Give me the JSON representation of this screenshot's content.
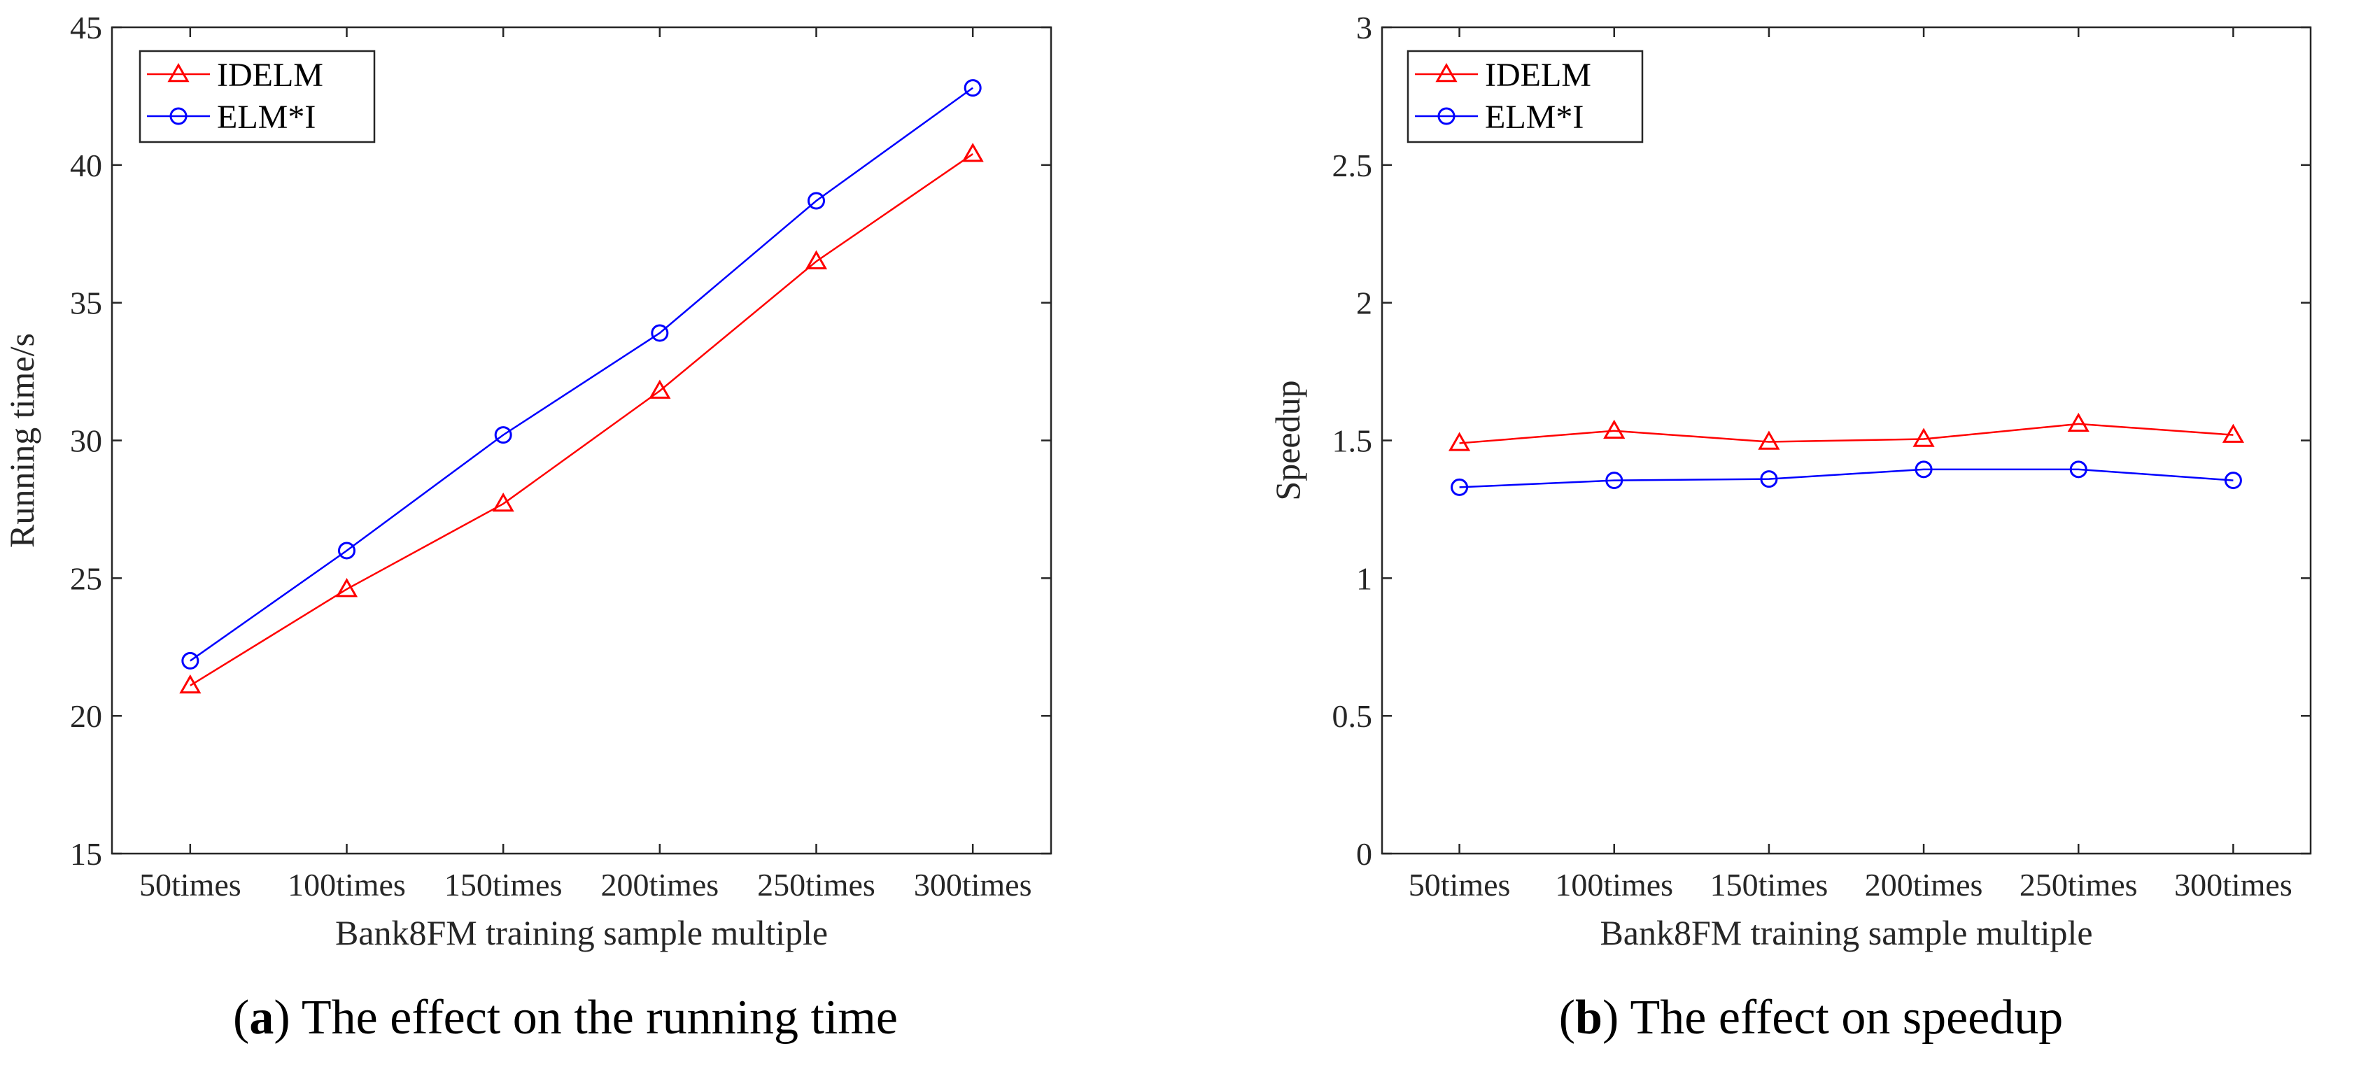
{
  "chart_data": [
    {
      "type": "line",
      "title": "",
      "xlabel": "Bank8FM training sample multiple",
      "ylabel": "Running time/s",
      "categories": [
        "50times",
        "100times",
        "150times",
        "200times",
        "250times",
        "300times"
      ],
      "ylim": [
        15,
        45
      ],
      "yticks": [
        "15",
        "20",
        "25",
        "30",
        "35",
        "40",
        "45"
      ],
      "legend_position": "top-left",
      "series": [
        {
          "name": "IDELM",
          "color": "#ff0000",
          "marker": "triangle",
          "values": [
            21.1,
            24.6,
            27.7,
            31.8,
            36.5,
            40.4
          ]
        },
        {
          "name": "ELM*I",
          "color": "#0000ff",
          "marker": "circle",
          "values": [
            22.0,
            26.0,
            30.2,
            33.9,
            38.7,
            42.8
          ]
        }
      ],
      "caption": {
        "letter": "a",
        "text": "The effect on the running time"
      }
    },
    {
      "type": "line",
      "title": "",
      "xlabel": "Bank8FM training sample multiple",
      "ylabel": "Speedup",
      "categories": [
        "50times",
        "100times",
        "150times",
        "200times",
        "250times",
        "300times"
      ],
      "ylim": [
        0,
        3
      ],
      "yticks": [
        "0",
        "0.5",
        "1",
        "1.5",
        "2",
        "2.5",
        "3"
      ],
      "legend_position": "top-left",
      "series": [
        {
          "name": "IDELM",
          "color": "#ff0000",
          "marker": "triangle",
          "values": [
            1.49,
            1.535,
            1.495,
            1.505,
            1.56,
            1.52
          ]
        },
        {
          "name": "ELM*I",
          "color": "#0000ff",
          "marker": "circle",
          "values": [
            1.33,
            1.355,
            1.36,
            1.395,
            1.395,
            1.355
          ]
        }
      ],
      "caption": {
        "letter": "b",
        "text": "The effect on speedup"
      }
    }
  ]
}
